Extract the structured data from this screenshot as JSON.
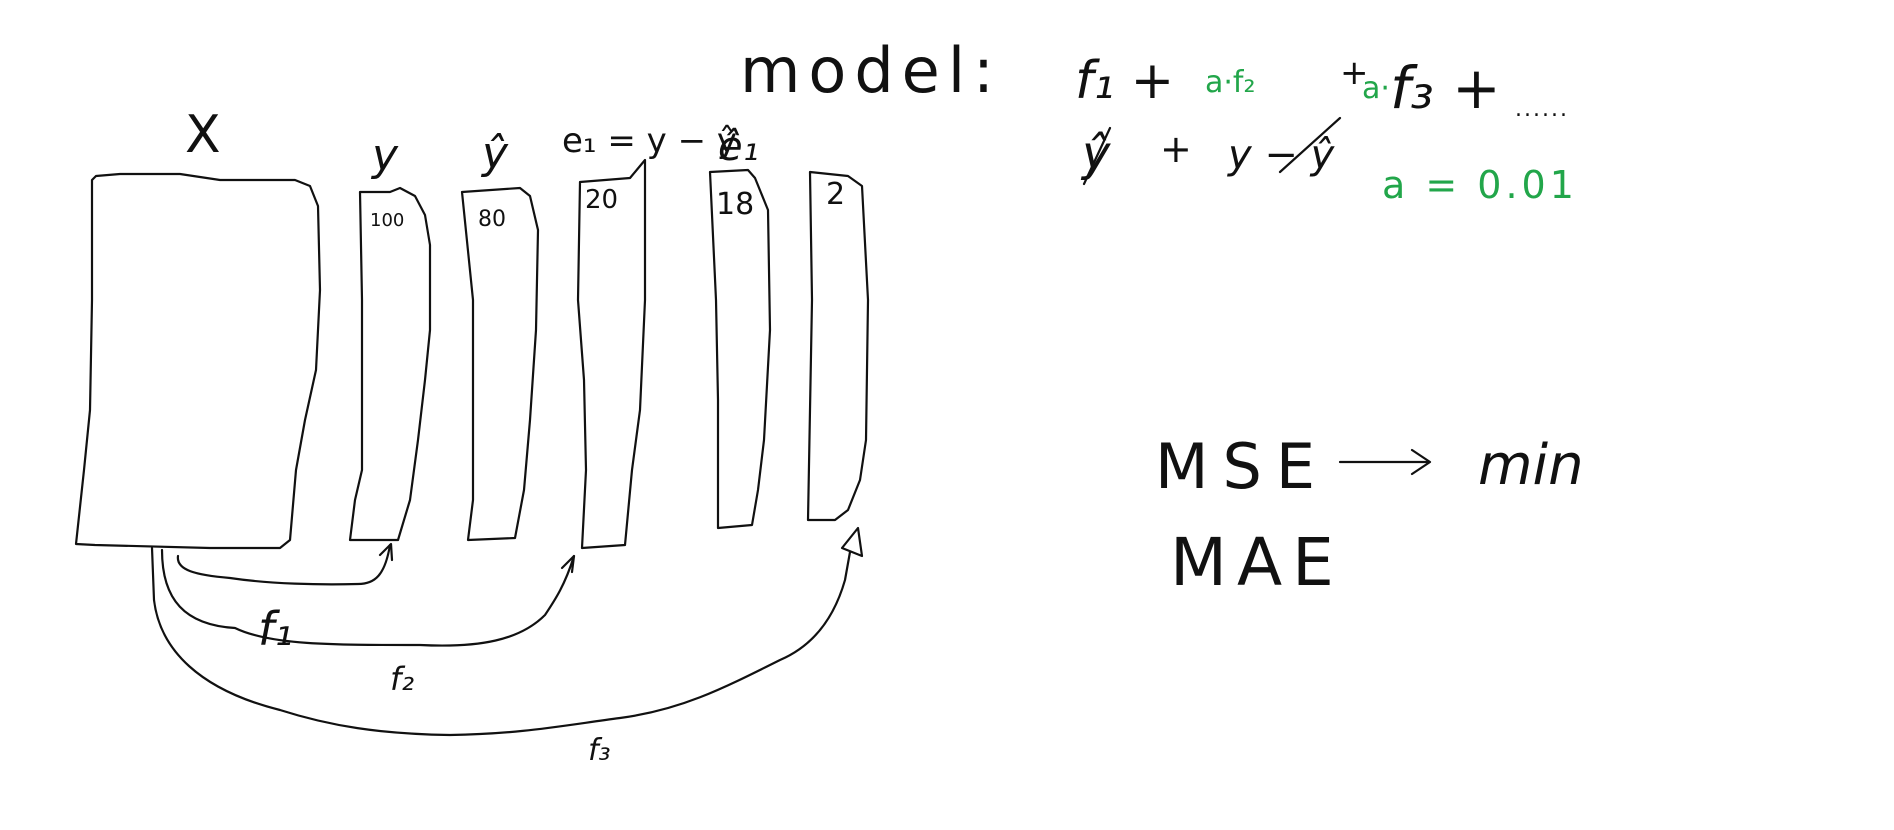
{
  "labels": {
    "x": "X",
    "y": "y",
    "y_hat": "ŷ",
    "e1_def": "e₁ = y − ŷ",
    "e1_hat": "ê₁",
    "f1": "f₁",
    "f2": "f₂",
    "f3": "f₃"
  },
  "values": {
    "y": "100",
    "y_hat": "80",
    "e1": "20",
    "e1_hat": "18",
    "residual2": "2"
  },
  "formula": {
    "title": "model:",
    "line1_f1": "f₁ +",
    "line1_a1": "a·f₂",
    "line1_plus": "+",
    "line1_a2": "a·",
    "line1_f3": "f₃ +",
    "line1_dots": "......",
    "line2_yhat": "ŷ",
    "line2_plus": "+",
    "line2_resid": "y − ŷ",
    "learning_rate": "a = 0.01"
  },
  "losses": {
    "mse": "MSE",
    "min": "min",
    "mae": "MAE"
  },
  "colors": {
    "ink": "#111111",
    "accent": "#22a64a"
  }
}
